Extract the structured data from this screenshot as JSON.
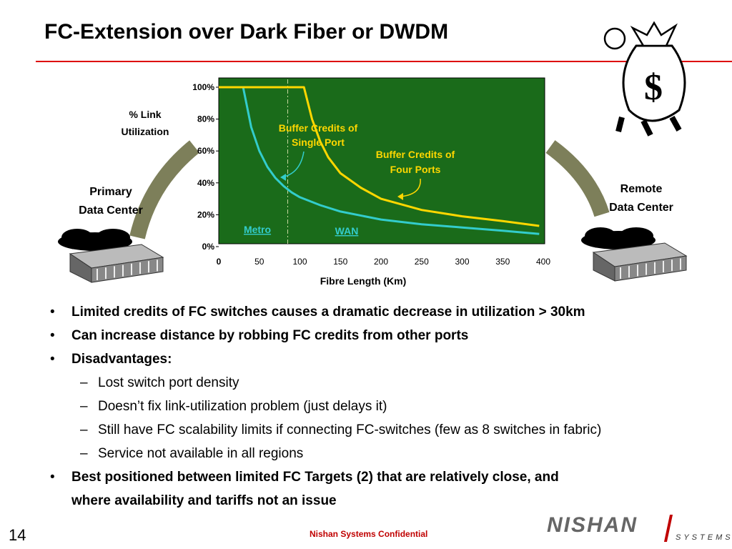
{
  "title": "FC-Extension over Dark Fiber or DWDM",
  "left_site": {
    "line1": "Primary",
    "line2": "Data Center"
  },
  "right_site": {
    "line1": "Remote",
    "line2": "Data Center"
  },
  "y_axis_title": {
    "line1": "% Link",
    "line2": "Utilization"
  },
  "chart_data": {
    "type": "line",
    "xlabel": "Fibre Length (Km)",
    "ylabel": "% Link Utilization",
    "xlim": [
      0,
      400
    ],
    "ylim": [
      0,
      100
    ],
    "x_ticks": [
      "0",
      "50",
      "100",
      "150",
      "200",
      "250",
      "300",
      "350",
      "400"
    ],
    "y_ticks": [
      "0%",
      "20%",
      "40%",
      "60%",
      "80%",
      "100%"
    ],
    "grid": false,
    "background": "#1a6b1a",
    "series": [
      {
        "color": "#33cccc",
        "x": [
          0,
          30,
          40,
          50,
          60,
          70,
          80,
          90,
          100,
          125,
          150,
          200,
          250,
          300,
          350,
          395
        ],
        "y": [
          100,
          100,
          75,
          60,
          50,
          43,
          38,
          34,
          31,
          26,
          22,
          17,
          14,
          12,
          10,
          8
        ]
      },
      {
        "color": "#ffd700",
        "x": [
          0,
          105,
          115,
          125,
          135,
          150,
          175,
          200,
          250,
          300,
          350,
          395
        ],
        "y": [
          100,
          100,
          80,
          66,
          56,
          46,
          37,
          30,
          23,
          19,
          16,
          13
        ]
      }
    ],
    "marker_line": {
      "x": 85
    },
    "annotations": [
      {
        "id": "single",
        "line1": "Buffer Credits of",
        "line2": "Single Port"
      },
      {
        "id": "four",
        "line1": "Buffer Credits of",
        "line2": "Four Ports"
      },
      {
        "id": "metro",
        "text": "Metro"
      },
      {
        "id": "wan",
        "text": "WAN"
      }
    ]
  },
  "bullets": [
    {
      "level": 1,
      "bold": true,
      "mark": "•",
      "text": "Limited credits of FC switches causes a dramatic decrease in utilization > 30km"
    },
    {
      "level": 1,
      "bold": true,
      "mark": "•",
      "text": "Can increase distance by robbing FC credits from other ports"
    },
    {
      "level": 1,
      "bold": true,
      "mark": "•",
      "text": "Disadvantages:"
    },
    {
      "level": 2,
      "bold": false,
      "mark": "–",
      "text": "Lost switch port density"
    },
    {
      "level": 2,
      "bold": false,
      "mark": "–",
      "text": "Doesn’t fix link-utilization problem (just delays it)"
    },
    {
      "level": 2,
      "bold": false,
      "mark": "–",
      "text": "Still have FC scalability limits if connecting FC-switches (few as 8 switches in fabric)"
    },
    {
      "level": 2,
      "bold": false,
      "mark": "–",
      "text": "Service not available in all regions"
    },
    {
      "level": 1,
      "bold": true,
      "mark": "•",
      "text": "Best positioned between limited FC Targets (2) that are relatively close, and"
    },
    {
      "level": 1,
      "bold": true,
      "mark": "",
      "text": "where availability and tariffs not an issue"
    }
  ],
  "footer": {
    "page_number": "14",
    "confidential": "Nishan Systems Confidential",
    "logo_main": "NISHAN",
    "logo_sub": "SYSTEMS"
  },
  "icons": [
    "money-bag-icon",
    "building-icon",
    "cloud-icon"
  ]
}
